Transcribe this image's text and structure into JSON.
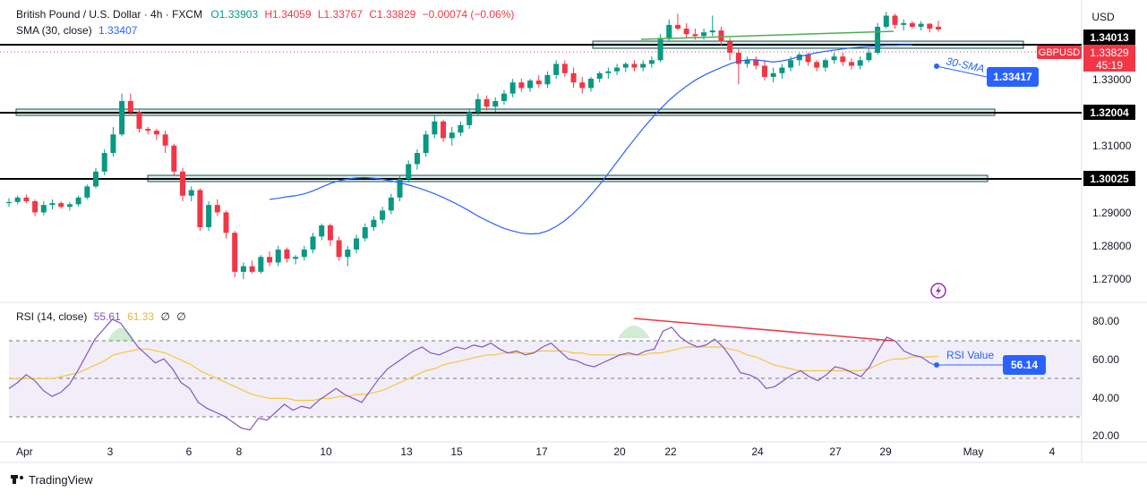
{
  "header": {
    "title": "British Pound / U.S. Dollar · 4h · FXCM",
    "open": "O1.33903",
    "high": "H1.34059",
    "low": "L1.33767",
    "close": "C1.33829",
    "change": "−0.00074 (−0.06%)",
    "sma_label": "SMA (30, close)",
    "sma_value": "1.33407"
  },
  "price_axis": {
    "currency": "USD",
    "ticks": [
      "1.33000",
      "1.31000",
      "1.29000",
      "1.28000",
      "1.27000"
    ],
    "level_tags": [
      "1.34013",
      "1.32004",
      "1.30025"
    ],
    "symbol_tag": "GBPUSD",
    "price_tag": "1.33829",
    "countdown": "45:19"
  },
  "annotations": {
    "sma_label": "30-SMA",
    "sma_value_box": "1.33417",
    "rsi_label": "RSI Value",
    "rsi_value_box": "56.14"
  },
  "rsi": {
    "label": "RSI (14, close)",
    "value": "55.61",
    "ma_value": "61.33",
    "extra1": "∅",
    "extra2": "∅",
    "ticks": [
      "80.00",
      "60.00",
      "40.00",
      "20.00"
    ]
  },
  "time_axis": {
    "labels": [
      "Apr",
      "3",
      "6",
      "8",
      "10",
      "13",
      "15",
      "17",
      "20",
      "22",
      "24",
      "27",
      "29",
      "May",
      "4"
    ]
  },
  "footer": {
    "brand": "TradingView"
  },
  "colors": {
    "up": "#089981",
    "down": "#f23645",
    "sma": "#2962ff",
    "rsi": "#7e57c2",
    "rsi_ma": "#f5c542",
    "zone": "#b2dfdb",
    "trend_green": "#4caf50",
    "trend_red": "#f23645"
  },
  "chart_data": {
    "type": "candlestick",
    "title": "British Pound / U.S. Dollar · 4h · FXCM",
    "y_range": [
      1.2655,
      1.3438
    ],
    "support_resistance": [
      1.34013,
      1.32004,
      1.30025
    ],
    "candles": [
      [
        1.2915,
        1.2928,
        1.2905,
        1.2918
      ],
      [
        1.2918,
        1.2935,
        1.2912,
        1.293
      ],
      [
        1.293,
        1.2938,
        1.2915,
        1.292
      ],
      [
        1.292,
        1.2925,
        1.288,
        1.289
      ],
      [
        1.289,
        1.292,
        1.2882,
        1.291
      ],
      [
        1.291,
        1.2925,
        1.2898,
        1.2915
      ],
      [
        1.2915,
        1.292,
        1.29,
        1.2905
      ],
      [
        1.2905,
        1.2918,
        1.2895,
        1.2912
      ],
      [
        1.2912,
        1.2935,
        1.2905,
        1.293
      ],
      [
        1.293,
        1.2965,
        1.2925,
        1.296
      ],
      [
        1.296,
        1.301,
        1.2955,
        1.3
      ],
      [
        1.3,
        1.306,
        1.299,
        1.305
      ],
      [
        1.305,
        1.312,
        1.304,
        1.31
      ],
      [
        1.31,
        1.321,
        1.3095,
        1.319
      ],
      [
        1.319,
        1.321,
        1.315,
        1.316
      ],
      [
        1.316,
        1.3165,
        1.3105,
        1.3115
      ],
      [
        1.3115,
        1.312,
        1.31,
        1.311
      ],
      [
        1.311,
        1.3115,
        1.3085,
        1.31
      ],
      [
        1.31,
        1.311,
        1.305,
        1.307
      ],
      [
        1.307,
        1.3075,
        1.299,
        1.3
      ],
      [
        1.3,
        1.301,
        1.292,
        1.2935
      ],
      [
        1.2935,
        1.296,
        1.292,
        1.295
      ],
      [
        1.295,
        1.2955,
        1.284,
        1.285
      ],
      [
        1.285,
        1.292,
        1.284,
        1.291
      ],
      [
        1.291,
        1.2925,
        1.288,
        1.289
      ],
      [
        1.289,
        1.2895,
        1.282,
        1.2835
      ],
      [
        1.2835,
        1.284,
        1.2715,
        1.273
      ],
      [
        1.273,
        1.2755,
        1.271,
        1.2745
      ],
      [
        1.2745,
        1.276,
        1.2725,
        1.273
      ],
      [
        1.273,
        1.2775,
        1.2725,
        1.277
      ],
      [
        1.277,
        1.2785,
        1.2745,
        1.2755
      ],
      [
        1.2755,
        1.28,
        1.2745,
        1.279
      ],
      [
        1.279,
        1.2795,
        1.2755,
        1.2765
      ],
      [
        1.2765,
        1.2775,
        1.275,
        1.277
      ],
      [
        1.277,
        1.28,
        1.276,
        1.279
      ],
      [
        1.279,
        1.2835,
        1.278,
        1.2825
      ],
      [
        1.2825,
        1.286,
        1.2815,
        1.2855
      ],
      [
        1.2855,
        1.286,
        1.28,
        1.2815
      ],
      [
        1.2815,
        1.2825,
        1.276,
        1.277
      ],
      [
        1.277,
        1.28,
        1.2745,
        1.279
      ],
      [
        1.279,
        1.283,
        1.278,
        1.282
      ],
      [
        1.282,
        1.286,
        1.2812,
        1.285
      ],
      [
        1.285,
        1.288,
        1.284,
        1.287
      ],
      [
        1.287,
        1.2905,
        1.286,
        1.2895
      ],
      [
        1.2895,
        1.294,
        1.2885,
        1.293
      ],
      [
        1.293,
        1.299,
        1.292,
        1.298
      ],
      [
        1.298,
        1.303,
        1.297,
        1.302
      ],
      [
        1.302,
        1.306,
        1.3005,
        1.305
      ],
      [
        1.305,
        1.311,
        1.304,
        1.31
      ],
      [
        1.31,
        1.315,
        1.309,
        1.3135
      ],
      [
        1.3135,
        1.314,
        1.308,
        1.309
      ],
      [
        1.309,
        1.312,
        1.307,
        1.3105
      ],
      [
        1.3105,
        1.3135,
        1.3095,
        1.3125
      ],
      [
        1.3125,
        1.317,
        1.3115,
        1.316
      ],
      [
        1.316,
        1.321,
        1.315,
        1.3195
      ],
      [
        1.3195,
        1.3205,
        1.3165,
        1.3175
      ],
      [
        1.3175,
        1.32,
        1.316,
        1.319
      ],
      [
        1.319,
        1.322,
        1.318,
        1.321
      ],
      [
        1.321,
        1.325,
        1.32,
        1.324
      ],
      [
        1.324,
        1.325,
        1.3215,
        1.3225
      ],
      [
        1.3225,
        1.325,
        1.3215,
        1.3245
      ],
      [
        1.3245,
        1.326,
        1.3225,
        1.3235
      ],
      [
        1.3235,
        1.327,
        1.3225,
        1.326
      ],
      [
        1.326,
        1.33,
        1.325,
        1.329
      ],
      [
        1.329,
        1.33,
        1.3255,
        1.3265
      ],
      [
        1.3265,
        1.328,
        1.3225,
        1.324
      ],
      [
        1.324,
        1.3255,
        1.321,
        1.3225
      ],
      [
        1.3225,
        1.3255,
        1.3215,
        1.325
      ],
      [
        1.325,
        1.327,
        1.324,
        1.3265
      ],
      [
        1.3265,
        1.328,
        1.325,
        1.327
      ],
      [
        1.327,
        1.329,
        1.326,
        1.328
      ],
      [
        1.328,
        1.3295,
        1.3268,
        1.329
      ],
      [
        1.329,
        1.33,
        1.327,
        1.328
      ],
      [
        1.328,
        1.33,
        1.327,
        1.329
      ],
      [
        1.329,
        1.331,
        1.328,
        1.33
      ],
      [
        1.33,
        1.337,
        1.3295,
        1.336
      ],
      [
        1.336,
        1.341,
        1.335,
        1.3395
      ],
      [
        1.3395,
        1.3425,
        1.338,
        1.3385
      ],
      [
        1.3385,
        1.34,
        1.336,
        1.337
      ],
      [
        1.337,
        1.3385,
        1.3355,
        1.3365
      ],
      [
        1.3365,
        1.3385,
        1.3355,
        1.3375
      ],
      [
        1.3375,
        1.342,
        1.3365,
        1.338
      ],
      [
        1.338,
        1.339,
        1.334,
        1.335
      ],
      [
        1.335,
        1.336,
        1.33,
        1.332
      ],
      [
        1.332,
        1.333,
        1.3235,
        1.329
      ],
      [
        1.329,
        1.331,
        1.328,
        1.33
      ],
      [
        1.33,
        1.331,
        1.3275,
        1.3285
      ],
      [
        1.3285,
        1.33,
        1.3245,
        1.3255
      ],
      [
        1.3255,
        1.328,
        1.324,
        1.3265
      ],
      [
        1.3265,
        1.329,
        1.325,
        1.328
      ],
      [
        1.328,
        1.331,
        1.327,
        1.33
      ],
      [
        1.33,
        1.332,
        1.3285,
        1.3315
      ],
      [
        1.3315,
        1.332,
        1.3285,
        1.3295
      ],
      [
        1.3295,
        1.33,
        1.327,
        1.328
      ],
      [
        1.328,
        1.3305,
        1.327,
        1.33
      ],
      [
        1.33,
        1.332,
        1.329,
        1.331
      ],
      [
        1.331,
        1.332,
        1.3285,
        1.3295
      ],
      [
        1.3295,
        1.3305,
        1.3275,
        1.3285
      ],
      [
        1.3285,
        1.331,
        1.3275,
        1.33
      ],
      [
        1.33,
        1.333,
        1.3295,
        1.332
      ],
      [
        1.332,
        1.34,
        1.3315,
        1.339
      ],
      [
        1.339,
        1.343,
        1.3385,
        1.342
      ],
      [
        1.342,
        1.3425,
        1.3385,
        1.3395
      ],
      [
        1.3395,
        1.341,
        1.338,
        1.34
      ],
      [
        1.34,
        1.3405,
        1.3385,
        1.339
      ],
      [
        1.339,
        1.3405,
        1.338,
        1.3398
      ],
      [
        1.3398,
        1.34,
        1.3375,
        1.3385
      ],
      [
        1.339,
        1.3406,
        1.3377,
        1.3383
      ]
    ],
    "sma": [
      1.2925,
      1.2928,
      1.2932,
      1.2935,
      1.294,
      1.2948,
      1.2958,
      1.2968,
      1.2975,
      1.298,
      1.2983,
      1.2984,
      1.2982,
      1.2979,
      1.2975,
      1.297,
      1.2964,
      1.2957,
      1.2949,
      1.294,
      1.293,
      1.2919,
      1.2907,
      1.2894,
      1.288,
      1.2868,
      1.2857,
      1.2847,
      1.284,
      1.2834,
      1.2832,
      1.2833,
      1.284,
      1.2852,
      1.2868,
      1.2888,
      1.2911,
      1.2937,
      1.2965,
      1.2995,
      1.3026,
      1.3057,
      1.3087,
      1.3116,
      1.3143,
      1.3169,
      1.3192,
      1.3212,
      1.323,
      1.3246,
      1.3259,
      1.327,
      1.328,
      1.329,
      1.3297,
      1.3301,
      1.3301,
      1.3298,
      1.3295,
      1.3298,
      1.3303,
      1.331,
      1.3315,
      1.332,
      1.3324,
      1.3327,
      1.333,
      1.3333,
      1.3335,
      1.3337,
      1.3339,
      1.334,
      1.334,
      1.3341,
      1.3341
    ],
    "sma_start_index": 30,
    "rsi": [
      45,
      48,
      52,
      49,
      44,
      41,
      43,
      47,
      54,
      62,
      70,
      75,
      80,
      78,
      72,
      66,
      62,
      58,
      60,
      55,
      48,
      45,
      38,
      35,
      33,
      31,
      28,
      25,
      24,
      30,
      29,
      33,
      37,
      34,
      36,
      35,
      39,
      42,
      45,
      42,
      40,
      38,
      44,
      50,
      55,
      58,
      61,
      64,
      66,
      63,
      62,
      64,
      66,
      65,
      67,
      66,
      68,
      65,
      63,
      64,
      62,
      63,
      66,
      68,
      64,
      60,
      59,
      57,
      56,
      58,
      60,
      62,
      63,
      62,
      64,
      65,
      74,
      76,
      71,
      68,
      66,
      67,
      70,
      66,
      60,
      53,
      52,
      50,
      45,
      46,
      49,
      52,
      54,
      51,
      49,
      52,
      56,
      55,
      53,
      51,
      56,
      64,
      71,
      69,
      64,
      62,
      61,
      58,
      56.14
    ],
    "rsi_ma": [
      50,
      50,
      50,
      50,
      50,
      50,
      51,
      52,
      53,
      55,
      57,
      59,
      62,
      63,
      64,
      65,
      65,
      64,
      63,
      61,
      59,
      57,
      54,
      52,
      50,
      48,
      46,
      44,
      42,
      41,
      40,
      40,
      40,
      39,
      39,
      39,
      40,
      40,
      41,
      41,
      42,
      42,
      43,
      44,
      46,
      48,
      50,
      52,
      54,
      55,
      57,
      58,
      59,
      60,
      61,
      62,
      62,
      63,
      63,
      63,
      63,
      64,
      64,
      64,
      64,
      63,
      63,
      62,
      62,
      62,
      62,
      62,
      62,
      62,
      63,
      63,
      64,
      65,
      66,
      66,
      66,
      66,
      66,
      65,
      64,
      62,
      61,
      59,
      57,
      56,
      55,
      54,
      54,
      54,
      54,
      54,
      54,
      54,
      54,
      55,
      57,
      59,
      60,
      60,
      61,
      61,
      61,
      61.33
    ],
    "rsi_levels": [
      70,
      50,
      30
    ],
    "rsi_range": [
      18,
      85
    ]
  }
}
